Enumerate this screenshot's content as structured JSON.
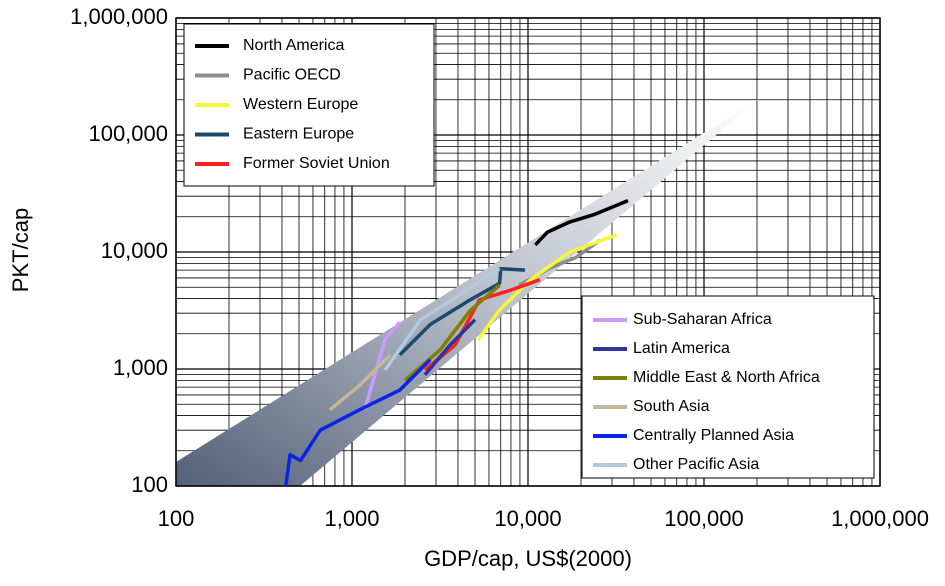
{
  "chart_data": {
    "type": "line",
    "xlabel": "GDP/cap, US$(2000)",
    "ylabel": "PKT/cap",
    "xscale": "log",
    "yscale": "log",
    "grid": true,
    "minor_grid": [
      2,
      3,
      4,
      5,
      6,
      7,
      8,
      9
    ],
    "xlim": [
      100,
      1000000
    ],
    "ylim": [
      100,
      1000000
    ],
    "xticks": [
      {
        "value": 100,
        "label": "100"
      },
      {
        "value": 1000,
        "label": "1,000"
      },
      {
        "value": 10000,
        "label": "10,000"
      },
      {
        "value": 100000,
        "label": "100,000"
      },
      {
        "value": 1000000,
        "label": "1,000,000"
      }
    ],
    "yticks": [
      {
        "value": 100,
        "label": "100"
      },
      {
        "value": 1000,
        "label": "1,000"
      },
      {
        "value": 10000,
        "label": "10,000"
      },
      {
        "value": 100000,
        "label": "100,000"
      },
      {
        "value": 1000000,
        "label": "1,000,000"
      }
    ],
    "series": [
      {
        "name": "North America",
        "color": "#000000",
        "legend": "upper left",
        "x": [
          11000,
          12900,
          17300,
          24000,
          37000
        ],
        "values": [
          11500,
          14800,
          18100,
          21000,
          27500
        ]
      },
      {
        "name": "Pacific OECD",
        "color": "#8c8c8c",
        "legend": "upper left",
        "x": [
          8900,
          13300,
          18500,
          25700
        ],
        "values": [
          5200,
          7300,
          8900,
          12600
        ]
      },
      {
        "name": "Western Europe",
        "color": "#f6f63a",
        "legend": "upper left",
        "x": [
          5200,
          6900,
          10300,
          17300,
          32000
        ],
        "values": [
          1770,
          3200,
          5800,
          10000,
          14000
        ]
      },
      {
        "name": "Eastern Europe",
        "color": "#1a4a6e",
        "legend": "upper left",
        "x": [
          1870,
          2780,
          4700,
          6900,
          7000,
          9600
        ],
        "values": [
          1320,
          2400,
          3900,
          5400,
          7200,
          7000
        ]
      },
      {
        "name": "Former Soviet Union",
        "color": "#ff2020",
        "legend": "upper left",
        "x": [
          2600,
          3850,
          5300,
          7900,
          11700
        ],
        "values": [
          980,
          1600,
          3900,
          4700,
          5800
        ]
      },
      {
        "name": "Sub-Saharan Africa",
        "color": "#cc99ff",
        "legend": "lower right",
        "x": [
          1180,
          1540,
          1870
        ],
        "values": [
          450,
          1780,
          2500
        ]
      },
      {
        "name": "Latin America",
        "color": "#333399",
        "legend": "lower right",
        "x": [
          2600,
          3600,
          5000
        ],
        "values": [
          890,
          1600,
          2640
        ]
      },
      {
        "name": "Middle East & North Africa",
        "color": "#808000",
        "legend": "lower right",
        "x": [
          2000,
          3160,
          4700,
          6900
        ],
        "values": [
          800,
          1450,
          3160,
          5200
        ]
      },
      {
        "name": "South Asia",
        "color": "#c4b896",
        "legend": "lower right",
        "x": [
          750,
          1110,
          1650
        ],
        "values": [
          450,
          730,
          1320
        ]
      },
      {
        "name": "Centrally Planned Asia",
        "color": "#0a24e6",
        "legend": "lower right",
        "x": [
          420,
          445,
          510,
          660,
          1110,
          1870,
          2780
        ],
        "values": [
          100,
          185,
          165,
          300,
          450,
          660,
          1200
        ]
      },
      {
        "name": "Other Pacific Asia",
        "color": "#b4c8e0",
        "legend": "lower right",
        "x": [
          1540,
          2450,
          4100,
          6900
        ],
        "values": [
          980,
          2640,
          4300,
          7200
        ]
      }
    ]
  }
}
